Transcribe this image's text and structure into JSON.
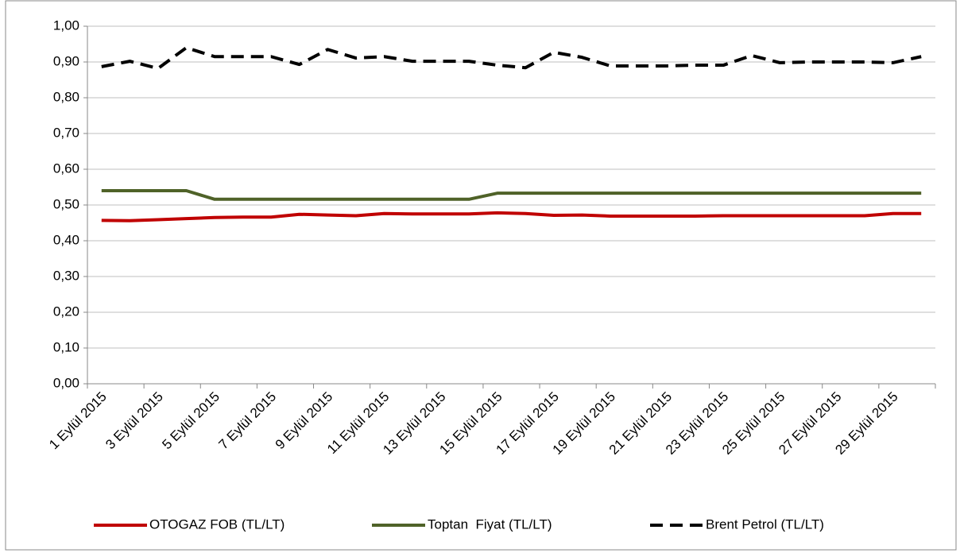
{
  "chart_data": {
    "type": "line",
    "categories": [
      "1 Eylül 2015",
      null,
      "3 Eylül 2015",
      null,
      "5 Eylül 2015",
      null,
      "7 Eylül 2015",
      null,
      "9 Eylül 2015",
      null,
      "11 Eylül 2015",
      null,
      "13 Eylül 2015",
      null,
      "15 Eylül 2015",
      null,
      "17 Eylül 2015",
      null,
      "19 Eylül 2015",
      null,
      "21 Eylül 2015",
      null,
      "23 Eylül 2015",
      null,
      "25 Eylül 2015",
      null,
      "27 Eylül 2015",
      null,
      "29 Eylül 2015",
      null
    ],
    "series": [
      {
        "name": "OTOGAZ FOB (TL/LT)",
        "color": "#c00000",
        "dashed": false,
        "values": [
          0.457,
          0.456,
          0.459,
          0.462,
          0.465,
          0.466,
          0.466,
          0.474,
          0.472,
          0.47,
          0.476,
          0.475,
          0.475,
          0.475,
          0.478,
          0.476,
          0.471,
          0.472,
          0.469,
          0.469,
          0.469,
          0.469,
          0.47,
          0.47,
          0.47,
          0.47,
          0.47,
          0.47,
          0.476,
          0.476
        ]
      },
      {
        "name": "Toptan  Fiyat (TL/LT)",
        "color": "#4f6228",
        "dashed": false,
        "values": [
          0.54,
          0.54,
          0.54,
          0.54,
          0.516,
          0.516,
          0.516,
          0.516,
          0.516,
          0.516,
          0.516,
          0.516,
          0.516,
          0.516,
          0.533,
          0.533,
          0.533,
          0.533,
          0.533,
          0.533,
          0.533,
          0.533,
          0.533,
          0.533,
          0.533,
          0.533,
          0.533,
          0.533,
          0.533,
          0.533
        ]
      },
      {
        "name": "Brent Petrol (TL/LT)",
        "color": "#000000",
        "dashed": true,
        "values": [
          0.887,
          0.902,
          0.882,
          0.94,
          0.915,
          0.915,
          0.915,
          0.893,
          0.935,
          0.911,
          0.915,
          0.902,
          0.902,
          0.902,
          0.891,
          0.884,
          0.927,
          0.913,
          0.889,
          0.889,
          0.889,
          0.891,
          0.891,
          0.918,
          0.898,
          0.9,
          0.9,
          0.9,
          0.898,
          0.915
        ]
      }
    ],
    "ylim": [
      0,
      1
    ],
    "yticks": [
      {
        "value": 0,
        "label": "0,00"
      },
      {
        "value": 0.1,
        "label": "0,10"
      },
      {
        "value": 0.2,
        "label": "0,20"
      },
      {
        "value": 0.3,
        "label": "0,30"
      },
      {
        "value": 0.4,
        "label": "0,40"
      },
      {
        "value": 0.5,
        "label": "0,50"
      },
      {
        "value": 0.6,
        "label": "0,60"
      },
      {
        "value": 0.7,
        "label": "0,70"
      },
      {
        "value": 0.8,
        "label": "0,80"
      },
      {
        "value": 0.9,
        "label": "0,90"
      },
      {
        "value": 1,
        "label": "1,00"
      }
    ],
    "grid": true,
    "legend": "bottom"
  }
}
